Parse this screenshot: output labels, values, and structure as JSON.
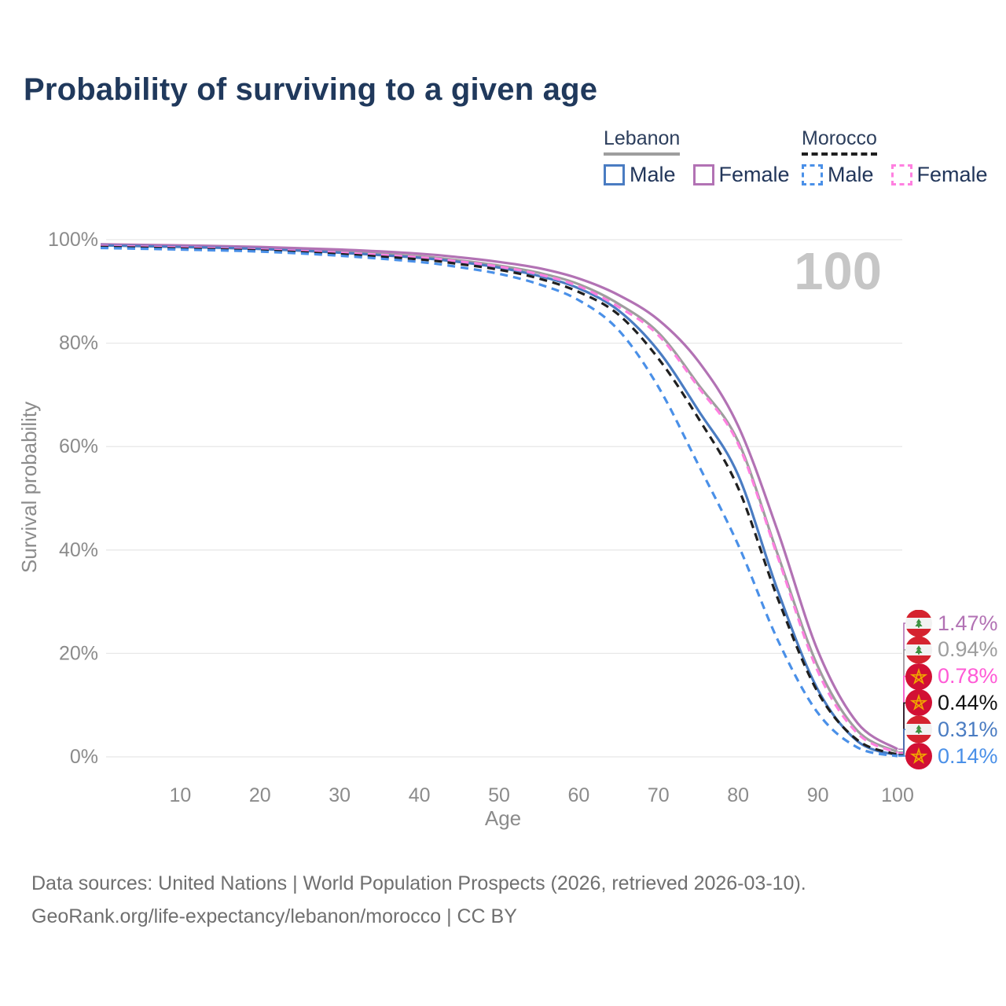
{
  "title": "Probability of surviving to a given age",
  "legend": {
    "groups": [
      {
        "label": "Lebanon",
        "line_style": "solid",
        "underline_color": "#9e9e9e",
        "items": [
          {
            "label": "Male",
            "color": "#4a7cc2",
            "dash": false
          },
          {
            "label": "Female",
            "color": "#b272b4",
            "dash": false
          }
        ]
      },
      {
        "label": "Morocco",
        "line_style": "dashed",
        "underline_color": "#1f1f1f",
        "items": [
          {
            "label": "Male",
            "color": "#4a90e8",
            "dash": true
          },
          {
            "label": "Female",
            "color": "#ff80e0",
            "dash": true
          }
        ]
      }
    ]
  },
  "chart_data": {
    "type": "line",
    "title": "Probability of surviving to a given age",
    "xlabel": "Age",
    "ylabel": "Survival probability",
    "xlim": [
      0,
      100
    ],
    "ylim": [
      0,
      100
    ],
    "x_ticks": [
      10,
      20,
      30,
      40,
      50,
      60,
      70,
      80,
      90,
      100
    ],
    "y_ticks": [
      0,
      20,
      40,
      60,
      80,
      100
    ],
    "y_tick_suffix": "%",
    "grid": "horizontal",
    "watermark": "100",
    "legend_position": "top-right",
    "series": [
      {
        "key": "leb_total",
        "name": "Lebanon Both sexes",
        "country": "Lebanon",
        "color": "#9e9e9e",
        "dash": false,
        "points": [
          [
            0,
            99.0
          ],
          [
            10,
            98.7
          ],
          [
            20,
            98.3
          ],
          [
            30,
            97.7
          ],
          [
            40,
            96.8
          ],
          [
            45,
            96.0
          ],
          [
            50,
            95.0
          ],
          [
            55,
            93.6
          ],
          [
            60,
            91.4
          ],
          [
            65,
            87.6
          ],
          [
            70,
            82.0
          ],
          [
            75,
            72.0
          ],
          [
            80,
            61.0
          ],
          [
            85,
            39.0
          ],
          [
            90,
            17.5
          ],
          [
            95,
            5.0
          ],
          [
            100,
            0.94
          ]
        ],
        "end_label": "0.94%"
      },
      {
        "key": "leb_female",
        "name": "Lebanon Female",
        "country": "Lebanon",
        "color": "#b272b4",
        "dash": false,
        "points": [
          [
            0,
            99.1
          ],
          [
            10,
            98.9
          ],
          [
            20,
            98.6
          ],
          [
            30,
            98.1
          ],
          [
            40,
            97.3
          ],
          [
            45,
            96.6
          ],
          [
            50,
            95.7
          ],
          [
            55,
            94.5
          ],
          [
            60,
            92.5
          ],
          [
            65,
            89.3
          ],
          [
            70,
            84.5
          ],
          [
            75,
            76.5
          ],
          [
            80,
            64.0
          ],
          [
            85,
            43.5
          ],
          [
            90,
            20.5
          ],
          [
            95,
            6.5
          ],
          [
            100,
            1.47
          ]
        ],
        "end_label": "1.47%"
      },
      {
        "key": "leb_male",
        "name": "Lebanon Male",
        "country": "Lebanon",
        "color": "#4a7cc2",
        "dash": false,
        "points": [
          [
            0,
            98.9
          ],
          [
            10,
            98.6
          ],
          [
            20,
            98.2
          ],
          [
            30,
            97.5
          ],
          [
            40,
            96.5
          ],
          [
            45,
            95.7
          ],
          [
            50,
            94.6
          ],
          [
            55,
            93.0
          ],
          [
            60,
            90.6
          ],
          [
            65,
            86.3
          ],
          [
            70,
            78.5
          ],
          [
            75,
            67.0
          ],
          [
            80,
            54.5
          ],
          [
            85,
            32.0
          ],
          [
            90,
            13.0
          ],
          [
            95,
            3.0
          ],
          [
            100,
            0.31
          ]
        ],
        "end_label": "0.31%"
      },
      {
        "key": "mor_female",
        "name": "Morocco Female",
        "country": "Morocco",
        "color": "#ff80e0",
        "dash": true,
        "points": [
          [
            0,
            98.8
          ],
          [
            10,
            98.5
          ],
          [
            20,
            98.1
          ],
          [
            30,
            97.5
          ],
          [
            40,
            96.6
          ],
          [
            45,
            95.8
          ],
          [
            50,
            94.8
          ],
          [
            55,
            93.3
          ],
          [
            60,
            91.0
          ],
          [
            65,
            87.0
          ],
          [
            70,
            81.5
          ],
          [
            75,
            71.5
          ],
          [
            80,
            60.5
          ],
          [
            85,
            38.5
          ],
          [
            90,
            16.5
          ],
          [
            95,
            4.5
          ],
          [
            100,
            0.78
          ]
        ],
        "end_label": "0.78%"
      },
      {
        "key": "mor_total",
        "name": "Morocco Both sexes",
        "country": "Morocco",
        "color": "#1f1f1f",
        "dash": true,
        "points": [
          [
            0,
            98.6
          ],
          [
            10,
            98.3
          ],
          [
            20,
            97.9
          ],
          [
            30,
            97.2
          ],
          [
            40,
            96.2
          ],
          [
            45,
            95.3
          ],
          [
            50,
            94.2
          ],
          [
            55,
            92.5
          ],
          [
            60,
            89.9
          ],
          [
            65,
            85.5
          ],
          [
            70,
            77.0
          ],
          [
            75,
            65.5
          ],
          [
            80,
            52.0
          ],
          [
            85,
            30.5
          ],
          [
            90,
            12.5
          ],
          [
            95,
            3.2
          ],
          [
            100,
            0.44
          ]
        ],
        "end_label": "0.44%"
      },
      {
        "key": "mor_male",
        "name": "Morocco Male",
        "country": "Morocco",
        "color": "#4a90e8",
        "dash": true,
        "points": [
          [
            0,
            98.4
          ],
          [
            10,
            98.1
          ],
          [
            20,
            97.7
          ],
          [
            30,
            96.9
          ],
          [
            40,
            95.7
          ],
          [
            45,
            94.7
          ],
          [
            50,
            93.4
          ],
          [
            55,
            91.4
          ],
          [
            60,
            88.3
          ],
          [
            65,
            82.5
          ],
          [
            70,
            71.5
          ],
          [
            75,
            56.5
          ],
          [
            80,
            41.0
          ],
          [
            85,
            22.5
          ],
          [
            90,
            8.5
          ],
          [
            95,
            1.8
          ],
          [
            100,
            0.14
          ]
        ],
        "end_label": "0.14%"
      }
    ]
  },
  "endpoint_labels": [
    {
      "series": "leb_female",
      "country": "Lebanon",
      "value": "1.47%",
      "color": "#b272b4"
    },
    {
      "series": "leb_total",
      "country": "Lebanon",
      "value": "0.94%",
      "color": "#9e9e9e"
    },
    {
      "series": "mor_female",
      "country": "Morocco",
      "value": "0.78%",
      "color": "#ff5ad6"
    },
    {
      "series": "mor_total",
      "country": "Morocco",
      "value": "0.44%",
      "color": "#111111"
    },
    {
      "series": "leb_male",
      "country": "Lebanon",
      "value": "0.31%",
      "color": "#4a7cc2"
    },
    {
      "series": "mor_male",
      "country": "Morocco",
      "value": "0.14%",
      "color": "#4a90e8"
    }
  ],
  "flag_colors": {
    "lebanon_red": "#d5232f",
    "lebanon_white": "#f2f2f2",
    "lebanon_green": "#3d9140",
    "morocco_red": "#d21034",
    "morocco_star": "#f0a500"
  },
  "styles": {
    "grid_color": "#e8e8e8",
    "tick_color": "#8b8b8b",
    "watermark_color": "#c6c6c6"
  },
  "footer": {
    "line1": "Data sources: United Nations | World Population Prospects (2026, retrieved 2026-03-10).",
    "line2": "GeoRank.org/life-expectancy/lebanon/morocco | CC BY"
  }
}
